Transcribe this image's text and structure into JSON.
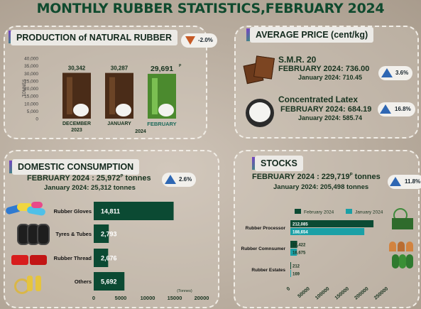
{
  "title": "MONTHLY RUBBER STATISTICS,FEBRUARY 2024",
  "production": {
    "heading": "PRODUCTION of NATURAL RUBBER",
    "change": "-2.0%",
    "ylabel": "TONNES",
    "yticks": [
      "40,000",
      "35,000",
      "30,000",
      "25,000",
      "20,000",
      "15,000",
      "10,000",
      "5,000",
      "0"
    ],
    "dec_label": "DECEMBER",
    "year_2023": "2023",
    "jan_label": "JANUARY",
    "feb_label": "FEBRUARY",
    "year_2024": "2024",
    "dec_value": "30,342",
    "jan_value": "30,287",
    "feb_value": "29,691",
    "feb_mark": "P"
  },
  "price": {
    "heading": "AVERAGE PRICE (cent/kg)",
    "smr_title": "S.M.R. 20",
    "smr_feb": "FEBRUARY 2024: 736.00",
    "smr_jan": "January 2024: 710.45",
    "smr_change": "3.6%",
    "latex_title": "Concentrated Latex",
    "latex_feb": "FEBRUARY 2024: 684.19",
    "latex_jan": "January 2024: 585.74",
    "latex_change": "16.8%"
  },
  "domestic": {
    "heading": "DOMESTIC CONSUMPTION",
    "feb_line": "FEBRUARY 2024 : 25,972",
    "feb_mark": "P",
    "feb_unit": " tonnes",
    "jan_line": "January 2024: 25,312 tonnes",
    "change": "2.6%",
    "unit_label": "(Tonnes)"
  },
  "stocks": {
    "heading": "STOCKS",
    "feb_line": "FEBRUARY 2024 : 229,719",
    "feb_mark": "P",
    "feb_unit": " tonnes",
    "jan_line": "January 2024: 205,498 tonnes",
    "change": "11.8%"
  },
  "colors": {
    "dark_green": "#0b4a33",
    "teal": "#1aa0a6",
    "up_blue": "#2f67b3",
    "down_orange": "#c65a25"
  },
  "chart_data": [
    {
      "type": "bar",
      "title": "PRODUCTION of NATURAL RUBBER",
      "ylabel": "TONNES",
      "categories": [
        "DECEMBER 2023",
        "JANUARY 2024",
        "FEBRUARY 2024"
      ],
      "values": [
        30342,
        30287,
        29691
      ],
      "ylim": [
        0,
        40000
      ]
    },
    {
      "type": "bar",
      "title": "DOMESTIC CONSUMPTION",
      "orientation": "horizontal",
      "xlabel": "(Tonnes)",
      "categories": [
        "Rubber Gloves",
        "Tyres & Tubes",
        "Rubber Thread",
        "Others"
      ],
      "values": [
        14811,
        2793,
        2676,
        5692
      ],
      "value_labels": [
        "14,811",
        "2,793",
        "2,676",
        "5,692"
      ],
      "xticks": [
        "0",
        "5000",
        "10000",
        "15000",
        "20000"
      ],
      "xlim": [
        0,
        20000
      ]
    },
    {
      "type": "bar",
      "title": "STOCKS",
      "orientation": "horizontal",
      "categories": [
        "Rubber Processor",
        "Rubber Comnsumer",
        "Rubber Estates"
      ],
      "series": [
        {
          "name": "February 2024",
          "values": [
            212085,
            17422,
            212
          ],
          "labels": [
            "212,085",
            "17,422",
            "212"
          ],
          "color": "#0b4a33"
        },
        {
          "name": "January 2024",
          "values": [
            188654,
            16675,
            169
          ],
          "labels": [
            "188,654",
            "16,675",
            "169"
          ],
          "color": "#1aa0a6"
        }
      ],
      "xticks": [
        "0",
        "50000",
        "100000",
        "150000",
        "200000",
        "250000"
      ],
      "xlim": [
        0,
        250000
      ],
      "legend": "top"
    }
  ]
}
